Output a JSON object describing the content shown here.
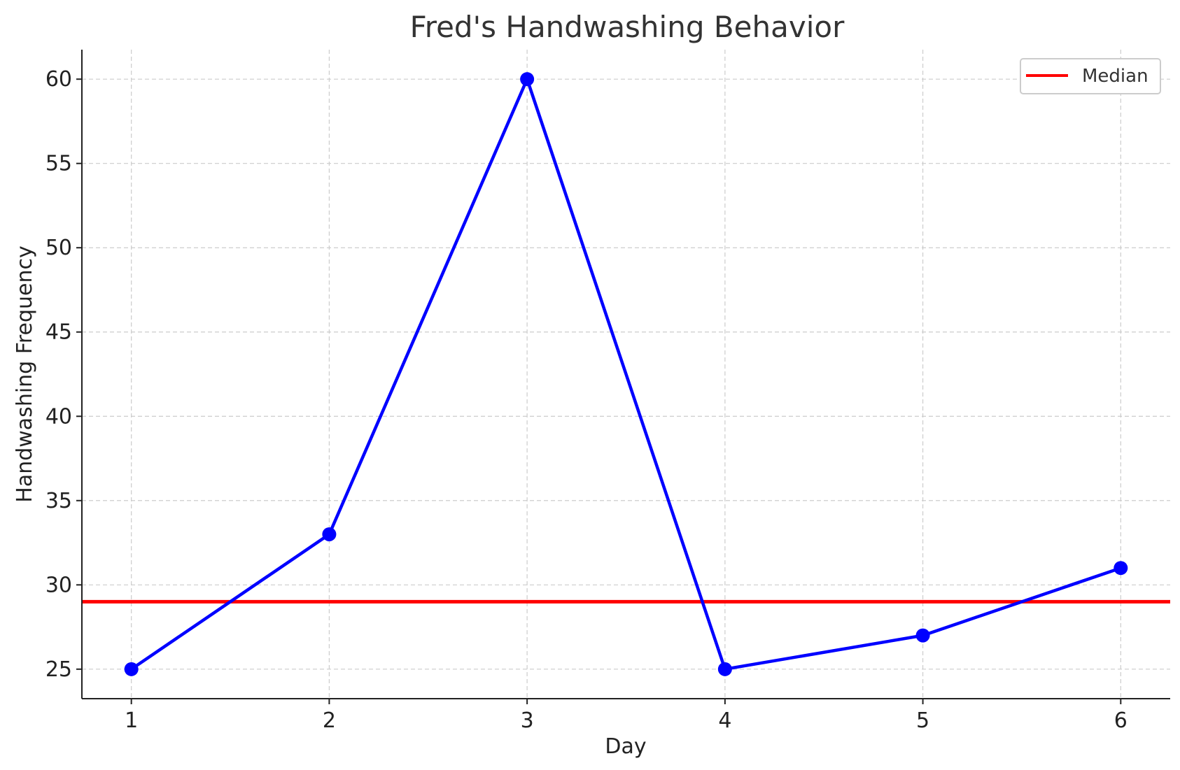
{
  "chart_data": {
    "type": "line",
    "title": "Fred's Handwashing Behavior",
    "xlabel": "Day",
    "ylabel": "Handwashing Frequency",
    "x": [
      1,
      2,
      3,
      4,
      5,
      6
    ],
    "xticks": [
      "1",
      "2",
      "3",
      "4",
      "5",
      "6"
    ],
    "yticks": [
      "25",
      "30",
      "35",
      "40",
      "45",
      "50",
      "55",
      "60"
    ],
    "series": [
      {
        "values": [
          25,
          33,
          60,
          25,
          27,
          31
        ],
        "color": "#0000ff",
        "marker": "circle"
      }
    ],
    "reference_lines": [
      {
        "name": "Median",
        "y": 29,
        "color": "#ff0000"
      }
    ],
    "xlim": [
      0.75,
      6.25
    ],
    "ylim": [
      23.25,
      61.75
    ],
    "grid": true,
    "legend": {
      "placement": "top-right",
      "entries": [
        "Median"
      ]
    }
  }
}
